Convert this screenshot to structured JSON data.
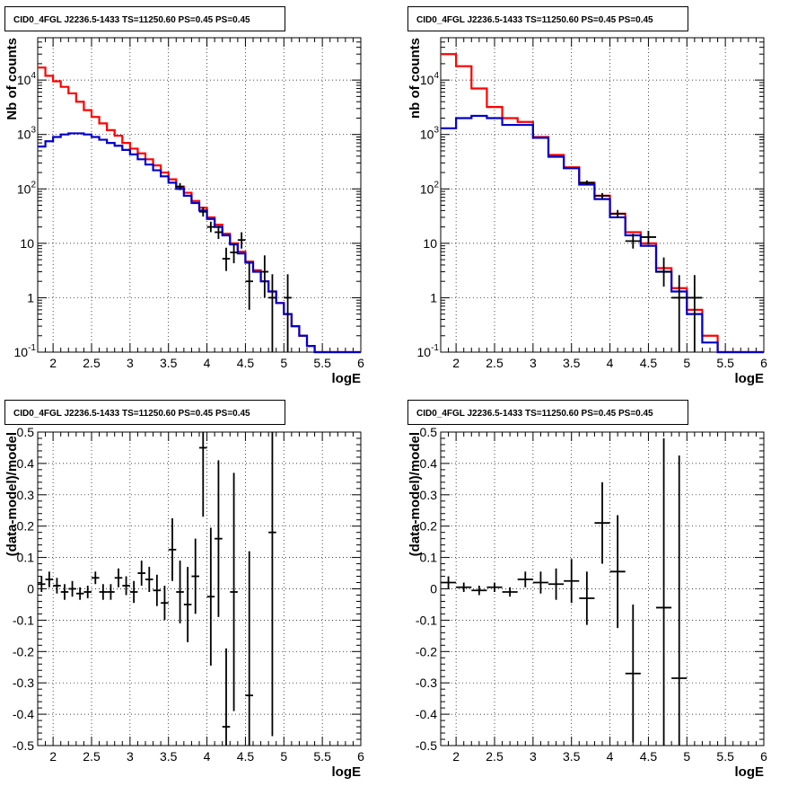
{
  "colors": {
    "model_total": "#ff0000",
    "model_source": "#0000cc",
    "data": "#000000",
    "grid": "#000000"
  },
  "chart_data": [
    {
      "type": "histogram",
      "title": "CID0_4FGL J2236.5-1433 TS=11250.60 PS=0.45 PS=0.45",
      "xlabel": "logE",
      "ylabel": "Nb of counts",
      "xlim": [
        1.8,
        6
      ],
      "ylim": [
        0.1,
        60000
      ],
      "yscale": "log",
      "grid": true,
      "xticks": [
        "2",
        "2.5",
        "3",
        "3.5",
        "4",
        "4.5",
        "5",
        "5.5",
        "6"
      ],
      "yticks": [
        "10^-1",
        "1",
        "10",
        "10^2",
        "10^3",
        "10^4"
      ],
      "bin_edges": [
        1.8,
        1.9,
        2.0,
        2.1,
        2.2,
        2.3,
        2.4,
        2.5,
        2.6,
        2.7,
        2.8,
        2.9,
        3.0,
        3.1,
        3.2,
        3.3,
        3.4,
        3.5,
        3.6,
        3.7,
        3.8,
        3.9,
        4.0,
        4.1,
        4.2,
        4.3,
        4.4,
        4.5,
        4.6,
        4.7,
        4.8,
        4.9,
        5.0,
        5.1,
        5.2,
        5.3,
        5.4,
        5.5,
        5.6,
        5.7,
        5.8,
        5.9,
        6.0
      ],
      "series": [
        {
          "values": [
            17000,
            12000,
            9500,
            7500,
            5700,
            4000,
            2800,
            2100,
            1600,
            1200,
            950,
            700,
            550,
            450,
            350,
            270,
            200,
            150,
            110,
            85,
            60,
            45,
            30,
            22,
            15,
            10,
            7,
            4.6,
            3.2,
            2,
            1.3,
            0.8,
            0.5,
            0.3,
            0.2,
            0.13,
            0.1,
            0.1,
            0.1,
            0.1,
            0.1,
            0.1
          ]
        },
        {
          "values": [
            600,
            750,
            900,
            1000,
            1050,
            1050,
            1000,
            900,
            800,
            700,
            620,
            520,
            430,
            350,
            280,
            220,
            170,
            130,
            100,
            75,
            55,
            40,
            28,
            20,
            14,
            9.5,
            6.5,
            4.4,
            3,
            2,
            1.3,
            0.8,
            0.5,
            0.3,
            0.2,
            0.13,
            0.1,
            0.1,
            0.1,
            0.1,
            0.1,
            0.1
          ]
        }
      ],
      "data_points": [
        {
          "x": 3.65,
          "y": 110,
          "ylo": 95,
          "yhi": 128
        },
        {
          "x": 3.95,
          "y": 38,
          "ylo": 31,
          "yhi": 46
        },
        {
          "x": 4.05,
          "y": 20,
          "ylo": 16,
          "yhi": 25
        },
        {
          "x": 4.15,
          "y": 16,
          "ylo": 12,
          "yhi": 21
        },
        {
          "x": 4.25,
          "y": 5.2,
          "ylo": 3.1,
          "yhi": 8.3
        },
        {
          "x": 4.35,
          "y": 6.8,
          "ylo": 4.3,
          "yhi": 10
        },
        {
          "x": 4.45,
          "y": 11.5,
          "ylo": 8,
          "yhi": 16
        },
        {
          "x": 4.55,
          "y": 2,
          "ylo": 0.6,
          "yhi": 4.5
        },
        {
          "x": 4.75,
          "y": 3,
          "ylo": 1,
          "yhi": 6
        },
        {
          "x": 4.85,
          "y": 1,
          "ylo": 0.1,
          "yhi": 2.7
        },
        {
          "x": 5.05,
          "y": 1,
          "ylo": 0.1,
          "yhi": 2.7
        }
      ]
    },
    {
      "type": "histogram",
      "title": "CID0_4FGL J2236.5-1433 TS=11250.60 PS=0.45 PS=0.45",
      "xlabel": "logE",
      "ylabel": "nb of counts",
      "xlim": [
        1.8,
        6
      ],
      "ylim": [
        0.1,
        60000
      ],
      "yscale": "log",
      "grid": true,
      "xticks": [
        "2",
        "2.5",
        "3",
        "3.5",
        "4",
        "4.5",
        "5",
        "5.5",
        "6"
      ],
      "yticks": [
        "10^-1",
        "1",
        "10",
        "10^2",
        "10^3",
        "10^4"
      ],
      "bin_edges": [
        1.8,
        2.0,
        2.2,
        2.4,
        2.6,
        2.8,
        3.0,
        3.2,
        3.4,
        3.6,
        3.8,
        4.0,
        4.2,
        4.4,
        4.6,
        4.8,
        5.0,
        5.2,
        5.4,
        5.6,
        5.8,
        6.0
      ],
      "series": [
        {
          "values": [
            30000,
            18000,
            7000,
            3200,
            2000,
            1700,
            900,
            420,
            250,
            130,
            75,
            35,
            16,
            10,
            3.5,
            1.5,
            0.6,
            0.2,
            0.1,
            0.1,
            0.1
          ]
        },
        {
          "values": [
            1300,
            2000,
            2200,
            2000,
            1500,
            1500,
            870,
            390,
            240,
            120,
            65,
            30,
            14,
            9,
            3.0,
            1.3,
            0.5,
            0.15,
            0.1,
            0.1,
            0.1
          ]
        }
      ],
      "data_points": [
        {
          "x": 3.7,
          "y": 130,
          "ylo": 118,
          "yhi": 143
        },
        {
          "x": 3.9,
          "y": 75,
          "ylo": 67,
          "yhi": 84
        },
        {
          "x": 4.1,
          "y": 35,
          "ylo": 29,
          "yhi": 41
        },
        {
          "x": 4.3,
          "y": 11,
          "ylo": 8,
          "yhi": 15
        },
        {
          "x": 4.5,
          "y": 13,
          "ylo": 9.5,
          "yhi": 17
        },
        {
          "x": 4.7,
          "y": 3,
          "ylo": 1.6,
          "yhi": 5.5
        },
        {
          "x": 4.9,
          "y": 1,
          "ylo": 0.1,
          "yhi": 2.6
        },
        {
          "x": 5.1,
          "y": 1,
          "ylo": 0.1,
          "yhi": 2.6
        }
      ]
    },
    {
      "type": "scatter",
      "title": "CID0_4FGL J2236.5-1433 TS=11250.60 PS=0.45 PS=0.45",
      "xlabel": "logE",
      "ylabel": "(data-model)/model",
      "xlim": [
        1.8,
        6
      ],
      "ylim": [
        -0.5,
        0.5
      ],
      "grid": true,
      "xticks": [
        "2",
        "2.5",
        "3",
        "3.5",
        "4",
        "4.5",
        "5",
        "5.5",
        "6"
      ],
      "yticks": [
        "-0.5",
        "-0.4",
        "-0.3",
        "-0.2",
        "-0.1",
        "0",
        "0.1",
        "0.2",
        "0.3",
        "0.4",
        "0.5"
      ],
      "xerr": 0.05,
      "points": [
        {
          "x": 1.85,
          "y": 0.015,
          "e": 0.025
        },
        {
          "x": 1.95,
          "y": 0.03,
          "e": 0.025
        },
        {
          "x": 2.05,
          "y": 0.01,
          "e": 0.025
        },
        {
          "x": 2.15,
          "y": -0.01,
          "e": 0.025
        },
        {
          "x": 2.25,
          "y": 0.0,
          "e": 0.025
        },
        {
          "x": 2.35,
          "y": -0.015,
          "e": 0.02
        },
        {
          "x": 2.45,
          "y": -0.01,
          "e": 0.02
        },
        {
          "x": 2.55,
          "y": 0.035,
          "e": 0.02
        },
        {
          "x": 2.65,
          "y": -0.01,
          "e": 0.025
        },
        {
          "x": 2.75,
          "y": -0.01,
          "e": 0.025
        },
        {
          "x": 2.85,
          "y": 0.035,
          "e": 0.03
        },
        {
          "x": 2.95,
          "y": 0.01,
          "e": 0.03
        },
        {
          "x": 3.05,
          "y": -0.01,
          "e": 0.035
        },
        {
          "x": 3.15,
          "y": 0.05,
          "e": 0.04
        },
        {
          "x": 3.25,
          "y": 0.03,
          "e": 0.04
        },
        {
          "x": 3.35,
          "y": -0.005,
          "e": 0.05
        },
        {
          "x": 3.45,
          "y": -0.045,
          "e": 0.055
        },
        {
          "x": 3.55,
          "y": 0.125,
          "e": 0.1
        },
        {
          "x": 3.65,
          "y": -0.01,
          "e": 0.1
        },
        {
          "x": 3.75,
          "y": -0.05,
          "e": 0.12
        },
        {
          "x": 3.85,
          "y": 0.04,
          "e": 0.12
        },
        {
          "x": 3.95,
          "y": 0.45,
          "e": 0.22
        },
        {
          "x": 4.05,
          "y": -0.025,
          "e": 0.22
        },
        {
          "x": 4.15,
          "y": 0.16,
          "e": 0.25
        },
        {
          "x": 4.25,
          "y": -0.44,
          "e": 0.25
        },
        {
          "x": 4.35,
          "y": -0.01,
          "e": 0.38
        },
        {
          "x": 4.55,
          "y": -0.34,
          "e": 0.46
        },
        {
          "x": 4.85,
          "y": 0.18,
          "e": 0.65
        }
      ]
    },
    {
      "type": "scatter",
      "title": "CID0_4FGL J2236.5-1433 TS=11250.60 PS=0.45 PS=0.45",
      "xlabel": "logE",
      "ylabel": "(data-model)/model",
      "xlim": [
        1.8,
        6
      ],
      "ylim": [
        -0.5,
        0.5
      ],
      "grid": true,
      "xticks": [
        "2",
        "2.5",
        "3",
        "3.5",
        "4",
        "4.5",
        "5",
        "5.5",
        "6"
      ],
      "yticks": [
        "-0.5",
        "-0.4",
        "-0.3",
        "-0.2",
        "-0.1",
        "0",
        "0.1",
        "0.2",
        "0.3",
        "0.4",
        "0.5"
      ],
      "xerr": 0.1,
      "points": [
        {
          "x": 1.9,
          "y": 0.02,
          "e": 0.02
        },
        {
          "x": 2.1,
          "y": 0.005,
          "e": 0.015
        },
        {
          "x": 2.3,
          "y": -0.005,
          "e": 0.015
        },
        {
          "x": 2.5,
          "y": 0.005,
          "e": 0.015
        },
        {
          "x": 2.7,
          "y": -0.01,
          "e": 0.015
        },
        {
          "x": 2.9,
          "y": 0.03,
          "e": 0.025
        },
        {
          "x": 3.1,
          "y": 0.02,
          "e": 0.035
        },
        {
          "x": 3.3,
          "y": 0.015,
          "e": 0.05
        },
        {
          "x": 3.5,
          "y": 0.025,
          "e": 0.07
        },
        {
          "x": 3.7,
          "y": -0.03,
          "e": 0.085
        },
        {
          "x": 3.9,
          "y": 0.21,
          "e": 0.13
        },
        {
          "x": 4.1,
          "y": 0.055,
          "e": 0.18
        },
        {
          "x": 4.3,
          "y": -0.27,
          "e": 0.22
        },
        {
          "x": 4.7,
          "y": -0.06,
          "e": 0.54
        },
        {
          "x": 4.9,
          "y": -0.285,
          "e": 0.71
        }
      ]
    }
  ]
}
